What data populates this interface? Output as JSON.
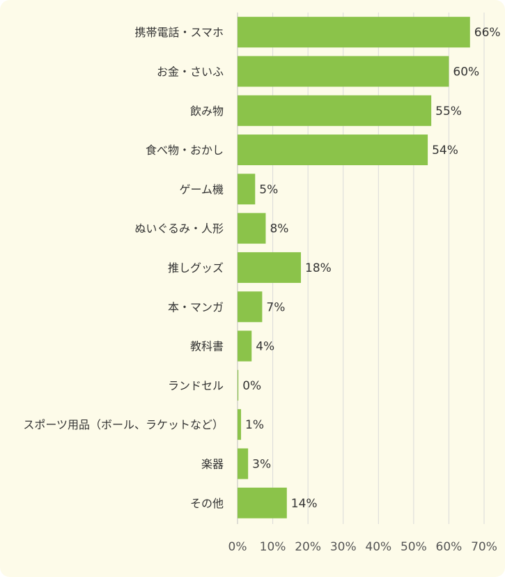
{
  "chart_data": {
    "type": "bar",
    "orientation": "horizontal",
    "title": "",
    "xlabel": "",
    "ylabel": "",
    "categories": [
      "携帯電話・スマホ",
      "お金・さいふ",
      "飲み物",
      "食べ物・おかし",
      "ゲーム機",
      "ぬいぐるみ・人形",
      "推しグッズ",
      "本・マンガ",
      "教科書",
      "ランドセル",
      "スポーツ用品（ボール、ラケットなど）",
      "楽器",
      "その他"
    ],
    "values": [
      66,
      60,
      55,
      54,
      5,
      8,
      18,
      7,
      4,
      0,
      1,
      3,
      14
    ],
    "value_labels": [
      "66%",
      "60%",
      "55%",
      "54%",
      "5%",
      "8%",
      "18%",
      "7%",
      "4%",
      "0%",
      "1%",
      "3%",
      "14%"
    ],
    "xlim": [
      0,
      70
    ],
    "xticks": [
      "0%",
      "10%",
      "20%",
      "30%",
      "40%",
      "50%",
      "60%",
      "70%"
    ],
    "grid": true,
    "legend": "none",
    "colors": {
      "bar": "#8bc34a",
      "background": "#fdfbe9",
      "text": "#333333"
    }
  }
}
